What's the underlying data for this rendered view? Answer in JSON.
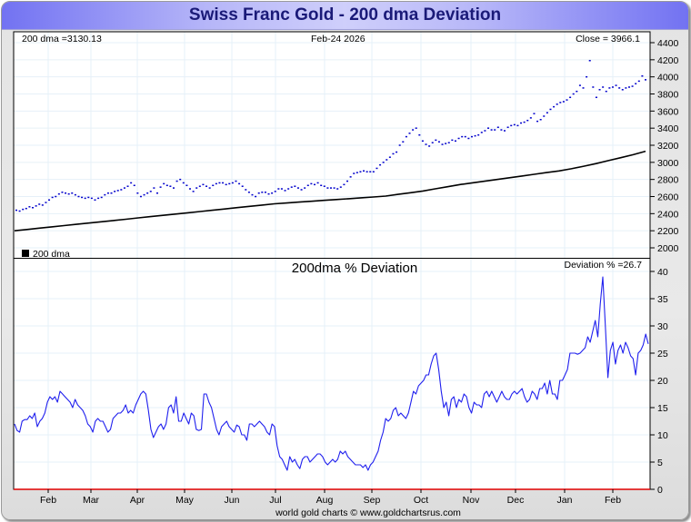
{
  "window": {
    "title": "Swiss Franc Gold - 200 dma Deviation"
  },
  "footer": {
    "credit": "world gold charts © www.goldchartsrus.com"
  },
  "colors": {
    "price": "#0000cc",
    "dma": "#000000",
    "deviation": "#2020ee",
    "zero_line": "#e00000",
    "grid": "#e6f0f8"
  },
  "chart_data": [
    {
      "type": "scatter",
      "title": "Swiss Franc Gold",
      "header_left": "200 dma =3130.13",
      "header_center": "Feb-24  2026",
      "header_right": "Close = 3966.1",
      "legend": "200 dma",
      "legend_placement": "bottom-left",
      "ylim": [
        2000,
        4400
      ],
      "yticks": [
        2000,
        2200,
        2400,
        2600,
        2800,
        3000,
        3200,
        3400,
        3600,
        3800,
        4000,
        4200,
        4400
      ],
      "xticks": [
        "Feb",
        "Mar",
        "Apr",
        "May",
        "Jun",
        "Jul",
        "Aug",
        "Sep",
        "Oct",
        "Nov",
        "Dec",
        "Jan",
        "Feb"
      ],
      "grid": true,
      "series": [
        {
          "name": "Close",
          "style": "dots",
          "values": [
            2440,
            2430,
            2450,
            2460,
            2480,
            2470,
            2490,
            2510,
            2500,
            2530,
            2560,
            2590,
            2600,
            2630,
            2650,
            2640,
            2630,
            2640,
            2620,
            2600,
            2590,
            2580,
            2590,
            2580,
            2560,
            2580,
            2590,
            2620,
            2640,
            2640,
            2660,
            2670,
            2680,
            2700,
            2720,
            2760,
            2730,
            2640,
            2600,
            2620,
            2640,
            2660,
            2700,
            2640,
            2710,
            2750,
            2730,
            2720,
            2700,
            2780,
            2800,
            2760,
            2730,
            2690,
            2660,
            2700,
            2720,
            2740,
            2720,
            2700,
            2730,
            2750,
            2760,
            2760,
            2740,
            2750,
            2760,
            2780,
            2750,
            2720,
            2680,
            2650,
            2620,
            2600,
            2640,
            2650,
            2650,
            2630,
            2640,
            2660,
            2690,
            2690,
            2670,
            2690,
            2710,
            2720,
            2700,
            2680,
            2700,
            2730,
            2750,
            2740,
            2760,
            2730,
            2720,
            2700,
            2700,
            2700,
            2690,
            2710,
            2740,
            2780,
            2830,
            2870,
            2880,
            2890,
            2900,
            2890,
            2890,
            2890,
            2930,
            2970,
            3000,
            3030,
            3060,
            3100,
            3120,
            3200,
            3240,
            3300,
            3340,
            3380,
            3400,
            3320,
            3250,
            3210,
            3190,
            3230,
            3260,
            3240,
            3210,
            3220,
            3230,
            3260,
            3250,
            3280,
            3300,
            3300,
            3280,
            3300,
            3310,
            3320,
            3350,
            3370,
            3400,
            3380,
            3380,
            3410,
            3380,
            3370,
            3410,
            3430,
            3440,
            3430,
            3460,
            3470,
            3490,
            3520,
            3570,
            3480,
            3500,
            3540,
            3580,
            3620,
            3650,
            3680,
            3700,
            3710,
            3730,
            3760,
            3800,
            3830,
            3900,
            3870,
            4000,
            4190,
            3880,
            3760,
            3850,
            3880,
            3830,
            3870,
            3880,
            3900,
            3870,
            3850,
            3870,
            3880,
            3890,
            3920,
            3950,
            4010,
            3966
          ]
        },
        {
          "name": "200 dma",
          "style": "line",
          "values": [
            2200,
            2215,
            2230,
            2245,
            2260,
            2275,
            2290,
            2305,
            2320,
            2335,
            2350,
            2365,
            2380,
            2395,
            2410,
            2425,
            2440,
            2455,
            2470,
            2485,
            2500,
            2515,
            2525,
            2535,
            2545,
            2555,
            2565,
            2575,
            2585,
            2595,
            2605,
            2625,
            2645,
            2665,
            2690,
            2715,
            2740,
            2760,
            2780,
            2800,
            2820,
            2840,
            2860,
            2880,
            2900,
            2925,
            2955,
            2985,
            3020,
            3055,
            3090,
            3130
          ]
        }
      ]
    },
    {
      "type": "line",
      "title": "200dma  %  Deviation",
      "header_right": "Deviation % =26.7",
      "ylim": [
        0,
        40
      ],
      "yticks": [
        0,
        5,
        10,
        15,
        20,
        25,
        30,
        35,
        40
      ],
      "xticks": [
        "Feb",
        "Mar",
        "Apr",
        "May",
        "Jun",
        "Jul",
        "Aug",
        "Sep",
        "Oct",
        "Nov",
        "Dec",
        "Jan",
        "Feb"
      ],
      "grid": true,
      "series": [
        {
          "name": "Deviation %",
          "values": [
            12.0,
            10.8,
            10.5,
            12.5,
            12.8,
            12.8,
            13.5,
            13.0,
            14.0,
            11.5,
            12.5,
            13.0,
            14.0,
            16.0,
            17.0,
            16.5,
            17.0,
            16.0,
            18.0,
            17.5,
            17.0,
            16.5,
            16.0,
            15.0,
            16.5,
            15.5,
            15.0,
            14.5,
            13.5,
            12.0,
            11.5,
            10.5,
            12.5,
            13.0,
            12.5,
            12.5,
            11.5,
            10.5,
            11.0,
            13.0,
            13.5,
            14.0,
            14.0,
            14.5,
            15.5,
            14.0,
            14.5,
            14.0,
            15.5,
            16.5,
            17.5,
            18.0,
            17.5,
            14.5,
            11.0,
            9.5,
            10.5,
            11.5,
            12.0,
            11.0,
            12.0,
            15.0,
            15.5,
            14.0,
            17.0,
            12.5,
            12.5,
            14.0,
            13.0,
            12.0,
            14.0,
            13.5,
            11.0,
            10.8,
            11.0,
            17.5,
            17.5,
            16.0,
            15.0,
            13.0,
            11.0,
            10.0,
            11.5,
            12.0,
            12.5,
            11.5,
            11.0,
            10.5,
            11.8,
            11.5,
            10.0,
            10.0,
            9.0,
            12.0,
            12.0,
            11.5,
            12.0,
            12.5,
            12.0,
            11.5,
            10.5,
            10.0,
            12.0,
            11.5,
            8.0,
            6.0,
            5.5,
            4.5,
            3.5,
            6.0,
            5.0,
            5.5,
            4.5,
            3.8,
            5.5,
            6.0,
            6.0,
            5.0,
            5.5,
            6.0,
            6.5,
            6.5,
            6.0,
            5.0,
            4.5,
            5.0,
            5.5,
            5.0,
            5.5,
            7.0,
            6.5,
            7.0,
            6.0,
            5.5,
            5.0,
            4.5,
            4.5,
            4.5,
            4.0,
            4.5,
            3.5,
            4.5,
            5.0,
            6.0,
            7.0,
            9.0,
            10.5,
            13.0,
            12.5,
            13.0,
            14.5,
            15.0,
            13.5,
            14.0,
            13.5,
            13.0,
            14.0,
            16.0,
            18.0,
            17.5,
            19.0,
            19.5,
            20.0,
            21.0,
            21.0,
            23.0,
            24.5,
            25.0,
            22.0,
            18.0,
            15.0,
            16.0,
            13.5,
            16.5,
            17.0,
            15.0,
            16.5,
            16.0,
            17.5,
            17.0,
            15.0,
            14.0,
            16.0,
            15.5,
            15.5,
            15.0,
            17.5,
            18.0,
            17.0,
            18.0,
            17.0,
            16.0,
            17.0,
            18.0,
            17.0,
            16.5,
            16.5,
            17.5,
            18.0,
            17.5,
            18.0,
            18.5,
            17.0,
            16.0,
            16.5,
            18.0,
            17.5,
            16.5,
            18.5,
            18.5,
            19.5,
            17.5,
            20.0,
            17.5,
            17.5,
            16.5,
            20.0,
            20.0,
            21.0,
            22.0,
            25.0,
            25.0,
            25.0,
            24.8,
            25.0,
            25.5,
            26.0,
            28.0,
            27.0,
            29.0,
            31.0,
            28.0,
            34.0,
            39.0,
            30.0,
            20.5,
            25.5,
            27.0,
            23.0,
            25.5,
            26.5,
            25.0,
            27.0,
            26.0,
            24.5,
            24.0,
            21.0,
            25.0,
            25.5,
            26.5,
            28.5,
            26.7
          ]
        }
      ]
    }
  ]
}
